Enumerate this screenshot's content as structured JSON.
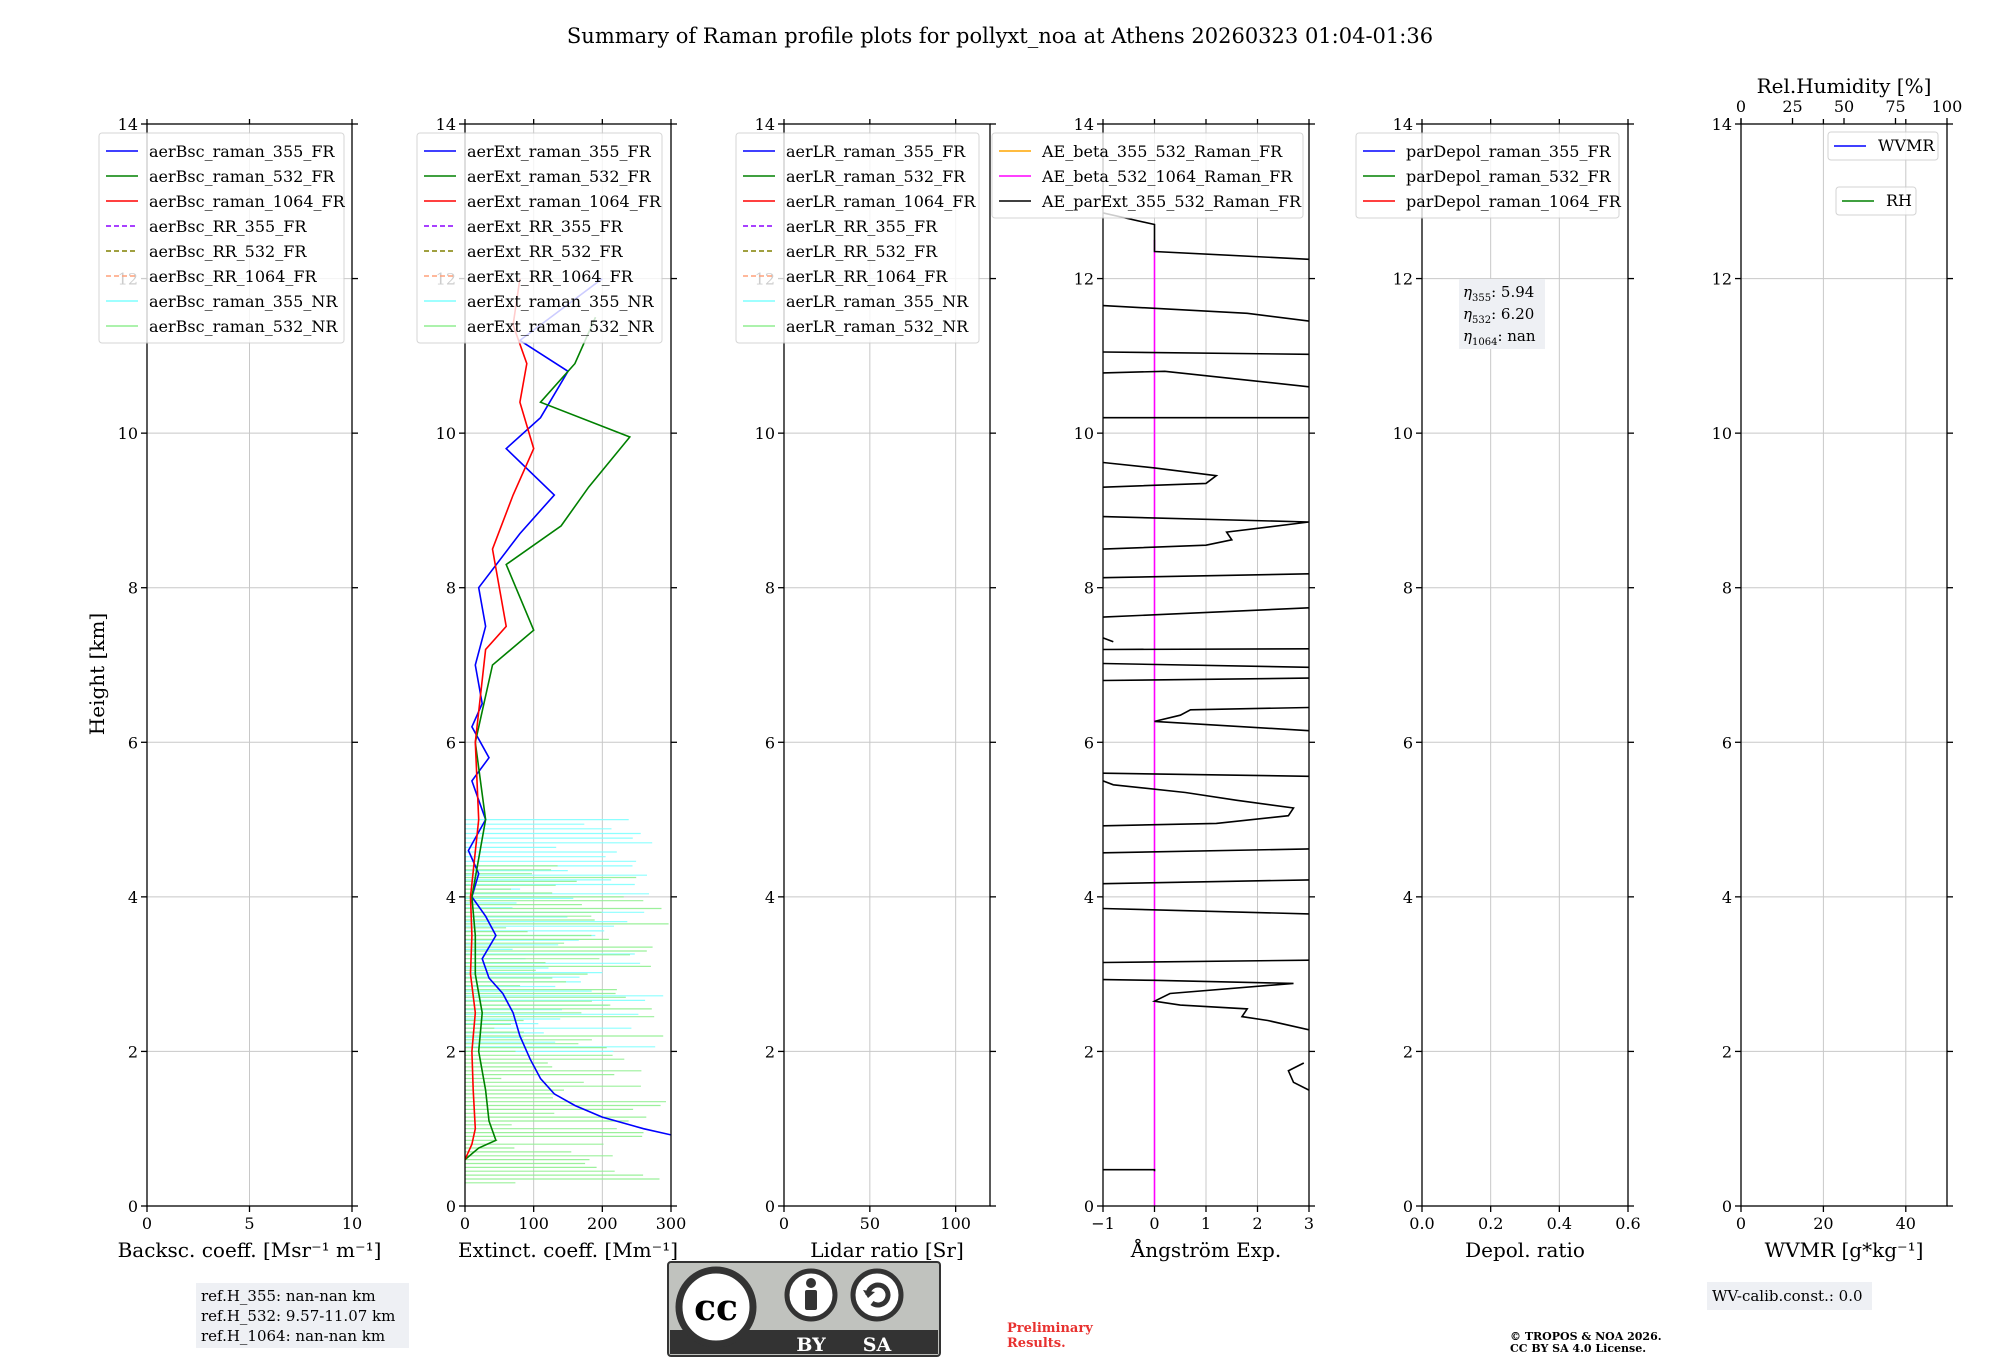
{
  "title": "Summary of Raman profile plots for pollyxt_noa at Athens 20260323 01:04-01:36",
  "ylabel": "Height [km]",
  "y_ticks": [
    0,
    2,
    4,
    6,
    8,
    10,
    12,
    14
  ],
  "colors": {
    "c355": "#0000ff",
    "c532": "#008000",
    "c1064": "#ff0000",
    "rr355": "#8b00ff",
    "rr532": "#808000",
    "rr1064": "#ffa07a",
    "nr355": "#7fffff",
    "nr532": "#90ee90",
    "orange": "#ffa500",
    "magenta": "#ff00ff",
    "black": "#000000",
    "grid": "#c8c8c8",
    "infobox": "#eef0f4"
  },
  "chart_data": [
    {
      "id": "bsc",
      "type": "line",
      "xlabel": "Backsc. coeff. [Msr⁻¹ m⁻¹]",
      "xlim": [
        0,
        10
      ],
      "ylim": [
        0,
        14
      ],
      "xticks": [
        0,
        5,
        10
      ],
      "grid": true,
      "legend": "top-left",
      "legend_entries": [
        {
          "label": "aerBsc_raman_355_FR",
          "color": "c355",
          "dashed": false
        },
        {
          "label": "aerBsc_raman_532_FR",
          "color": "c532",
          "dashed": false
        },
        {
          "label": "aerBsc_raman_1064_FR",
          "color": "c1064",
          "dashed": false
        },
        {
          "label": "aerBsc_RR_355_FR",
          "color": "rr355",
          "dashed": true
        },
        {
          "label": "aerBsc_RR_532_FR",
          "color": "rr532",
          "dashed": true
        },
        {
          "label": "aerBsc_RR_1064_FR",
          "color": "rr1064",
          "dashed": true
        },
        {
          "label": "aerBsc_raman_355_NR",
          "color": "nr355",
          "dashed": false
        },
        {
          "label": "aerBsc_raman_532_NR",
          "color": "nr532",
          "dashed": false
        }
      ],
      "series": []
    },
    {
      "id": "ext",
      "type": "line",
      "xlabel": "Extinct. coeff. [Mm⁻¹]",
      "xlim": [
        0,
        300
      ],
      "ylim": [
        0,
        14
      ],
      "xticks": [
        0,
        100,
        200,
        300
      ],
      "grid": true,
      "legend": "top-left",
      "legend_entries": [
        {
          "label": "aerExt_raman_355_FR",
          "color": "c355",
          "dashed": false
        },
        {
          "label": "aerExt_raman_532_FR",
          "color": "c532",
          "dashed": false
        },
        {
          "label": "aerExt_raman_1064_FR",
          "color": "c1064",
          "dashed": false
        },
        {
          "label": "aerExt_RR_355_FR",
          "color": "rr355",
          "dashed": true
        },
        {
          "label": "aerExt_RR_532_FR",
          "color": "rr532",
          "dashed": true
        },
        {
          "label": "aerExt_RR_1064_FR",
          "color": "rr1064",
          "dashed": true
        },
        {
          "label": "aerExt_raman_355_NR",
          "color": "nr355",
          "dashed": false
        },
        {
          "label": "aerExt_raman_532_NR",
          "color": "nr532",
          "dashed": false
        }
      ],
      "series": [
        {
          "name": "aerExt_raman_355_NR",
          "color": "nr355",
          "kind": "spiky",
          "y_range": [
            2.0,
            5.0
          ],
          "base": 60,
          "amp": 240,
          "seed": 11,
          "step": 0.06
        },
        {
          "name": "aerExt_raman_532_NR",
          "color": "nr532",
          "kind": "spiky",
          "y_range": [
            0.3,
            4.4
          ],
          "base": 40,
          "amp": 260,
          "seed": 23,
          "step": 0.05
        },
        {
          "name": "aerExt_raman_355_FR",
          "color": "c355",
          "kind": "points",
          "points": [
            [
              300,
              0.92
            ],
            [
              260,
              1.0
            ],
            [
              200,
              1.15
            ],
            [
              160,
              1.3
            ],
            [
              130,
              1.45
            ],
            [
              110,
              1.65
            ],
            [
              95,
              1.9
            ],
            [
              80,
              2.2
            ],
            [
              70,
              2.5
            ],
            [
              55,
              2.75
            ],
            [
              35,
              2.95
            ],
            [
              25,
              3.2
            ],
            [
              45,
              3.5
            ],
            [
              30,
              3.75
            ],
            [
              10,
              4.0
            ],
            [
              20,
              4.3
            ],
            [
              5,
              4.6
            ],
            [
              30,
              5.0
            ],
            [
              10,
              5.5
            ],
            [
              35,
              5.8
            ],
            [
              10,
              6.2
            ],
            [
              25,
              6.5
            ],
            [
              15,
              7.0
            ],
            [
              30,
              7.5
            ],
            [
              20,
              8.0
            ],
            [
              80,
              8.7
            ],
            [
              130,
              9.2
            ],
            [
              60,
              9.8
            ],
            [
              110,
              10.2
            ],
            [
              150,
              10.8
            ],
            [
              80,
              11.2
            ],
            [
              200,
              12.0
            ]
          ]
        },
        {
          "name": "aerExt_raman_532_FR",
          "color": "c532",
          "kind": "points",
          "points": [
            [
              0,
              0.6
            ],
            [
              20,
              0.75
            ],
            [
              45,
              0.85
            ],
            [
              35,
              1.1
            ],
            [
              30,
              1.5
            ],
            [
              20,
              2.0
            ],
            [
              25,
              2.5
            ],
            [
              15,
              3.0
            ],
            [
              15,
              3.5
            ],
            [
              10,
              4.0
            ],
            [
              30,
              5.0
            ],
            [
              15,
              6.0
            ],
            [
              40,
              7.0
            ],
            [
              100,
              7.45
            ],
            [
              60,
              8.3
            ],
            [
              140,
              8.8
            ],
            [
              180,
              9.3
            ],
            [
              240,
              9.95
            ],
            [
              110,
              10.4
            ],
            [
              160,
              10.9
            ],
            [
              190,
              11.5
            ]
          ]
        },
        {
          "name": "aerExt_raman_1064_FR",
          "color": "c1064",
          "kind": "points",
          "points": [
            [
              0,
              0.6
            ],
            [
              10,
              0.8
            ],
            [
              15,
              1.0
            ],
            [
              12,
              1.5
            ],
            [
              10,
              2.0
            ],
            [
              15,
              2.5
            ],
            [
              8,
              3.0
            ],
            [
              10,
              3.5
            ],
            [
              8,
              4.0
            ],
            [
              20,
              5.0
            ],
            [
              15,
              6.0
            ],
            [
              30,
              7.2
            ],
            [
              60,
              7.5
            ],
            [
              40,
              8.5
            ],
            [
              70,
              9.2
            ],
            [
              100,
              9.8
            ],
            [
              80,
              10.4
            ],
            [
              90,
              10.9
            ],
            [
              70,
              11.4
            ],
            [
              80,
              12.0
            ]
          ]
        }
      ]
    },
    {
      "id": "lr",
      "type": "line",
      "xlabel": "Lidar ratio [Sr]",
      "xlim": [
        0,
        120
      ],
      "ylim": [
        0,
        14
      ],
      "xticks": [
        0,
        50,
        100
      ],
      "grid": true,
      "legend": "top-left",
      "legend_entries": [
        {
          "label": "aerLR_raman_355_FR",
          "color": "c355",
          "dashed": false
        },
        {
          "label": "aerLR_raman_532_FR",
          "color": "c532",
          "dashed": false
        },
        {
          "label": "aerLR_raman_1064_FR",
          "color": "c1064",
          "dashed": false
        },
        {
          "label": "aerLR_RR_355_FR",
          "color": "rr355",
          "dashed": true
        },
        {
          "label": "aerLR_RR_532_FR",
          "color": "rr532",
          "dashed": true
        },
        {
          "label": "aerLR_RR_1064_FR",
          "color": "rr1064",
          "dashed": true
        },
        {
          "label": "aerLR_raman_355_NR",
          "color": "nr355",
          "dashed": false
        },
        {
          "label": "aerLR_raman_532_NR",
          "color": "nr532",
          "dashed": false
        }
      ],
      "series": []
    },
    {
      "id": "ae",
      "type": "line",
      "xlabel": "Ångström Exp.",
      "xlim": [
        -1,
        3
      ],
      "ylim": [
        0,
        14
      ],
      "xticks": [
        -1,
        0,
        1,
        2,
        3
      ],
      "grid": true,
      "legend": "top-left",
      "legend_entries": [
        {
          "label": "AE_beta_355_532_Raman_FR",
          "color": "orange",
          "dashed": false
        },
        {
          "label": "AE_beta_532_1064_Raman_FR",
          "color": "magenta",
          "dashed": false
        },
        {
          "label": "AE_parExt_355_532_Raman_FR",
          "color": "black",
          "dashed": false
        }
      ],
      "series": [
        {
          "name": "AE_beta_532_1064_Raman_FR",
          "color": "magenta",
          "kind": "points",
          "points": [
            [
              0,
              0.0
            ],
            [
              0,
              12.5
            ]
          ]
        },
        {
          "name": "AE_parExt_355_532_Raman_FR",
          "color": "black",
          "kind": "segments",
          "segments": [
            [
              [
                -1,
                0.47
              ],
              [
                0,
                0.47
              ],
              [
                0,
                0.45
              ]
            ],
            [
              [
                2.9,
                1.85
              ],
              [
                2.6,
                1.75
              ],
              [
                2.7,
                1.6
              ],
              [
                3,
                1.5
              ]
            ],
            [
              [
                3,
                2.28
              ],
              [
                2.2,
                2.4
              ],
              [
                1.7,
                2.45
              ],
              [
                1.8,
                2.55
              ],
              [
                0.5,
                2.6
              ],
              [
                0,
                2.65
              ],
              [
                0.3,
                2.75
              ],
              [
                2.7,
                2.88
              ],
              [
                0,
                2.92
              ],
              [
                -1,
                2.93
              ]
            ],
            [
              [
                -1,
                3.15
              ],
              [
                3,
                3.18
              ]
            ],
            [
              [
                -1,
                3.85
              ],
              [
                3,
                3.78
              ]
            ],
            [
              [
                -1,
                4.17
              ],
              [
                3,
                4.22
              ]
            ],
            [
              [
                -1,
                4.57
              ],
              [
                3,
                4.62
              ]
            ],
            [
              [
                -1,
                4.92
              ],
              [
                1.2,
                4.95
              ],
              [
                2.6,
                5.05
              ],
              [
                2.7,
                5.15
              ],
              [
                1.6,
                5.25
              ],
              [
                0.6,
                5.35
              ],
              [
                -0.8,
                5.45
              ],
              [
                -1,
                5.5
              ]
            ],
            [
              [
                -1,
                5.6
              ],
              [
                3,
                5.56
              ]
            ],
            [
              [
                3,
                6.15
              ],
              [
                0,
                6.27
              ],
              [
                0.5,
                6.35
              ],
              [
                0.7,
                6.42
              ],
              [
                3,
                6.45
              ]
            ],
            [
              [
                -1,
                6.8
              ],
              [
                3,
                6.83
              ]
            ],
            [
              [
                -1,
                7.02
              ],
              [
                3,
                6.97
              ]
            ],
            [
              [
                -1,
                7.2
              ],
              [
                3,
                7.21
              ]
            ],
            [
              [
                -0.8,
                7.3
              ],
              [
                -1,
                7.35
              ]
            ],
            [
              [
                -1,
                7.62
              ],
              [
                3,
                7.74
              ]
            ],
            [
              [
                -1,
                8.13
              ],
              [
                3,
                8.18
              ]
            ],
            [
              [
                -1,
                8.5
              ],
              [
                1.0,
                8.55
              ],
              [
                1.5,
                8.62
              ],
              [
                1.4,
                8.72
              ],
              [
                3,
                8.85
              ],
              [
                -1,
                8.92
              ]
            ],
            [
              [
                -1,
                9.3
              ],
              [
                1.0,
                9.35
              ],
              [
                1.2,
                9.45
              ],
              [
                0,
                9.55
              ],
              [
                -1,
                9.62
              ]
            ],
            [
              [
                -1,
                10.2
              ],
              [
                3,
                10.2
              ]
            ],
            [
              [
                -1,
                10.78
              ],
              [
                0.2,
                10.8
              ],
              [
                3,
                10.6
              ]
            ],
            [
              [
                -1,
                11.05
              ],
              [
                3,
                11.02
              ]
            ],
            [
              [
                -1,
                11.65
              ],
              [
                1.8,
                11.55
              ],
              [
                3,
                11.45
              ]
            ],
            [
              [
                -1,
                12.85
              ],
              [
                0,
                12.7
              ],
              [
                0,
                12.35
              ],
              [
                3,
                12.25
              ]
            ]
          ]
        }
      ]
    },
    {
      "id": "depol",
      "type": "line",
      "xlabel": "Depol. ratio",
      "xlim": [
        0,
        0.6
      ],
      "ylim": [
        0,
        14
      ],
      "xticks": [
        0.0,
        0.2,
        0.4,
        0.6
      ],
      "grid": true,
      "legend": "top-left",
      "legend_entries": [
        {
          "label": "parDepol_raman_355_FR",
          "color": "c355",
          "dashed": false
        },
        {
          "label": "parDepol_raman_532_FR",
          "color": "c532",
          "dashed": false
        },
        {
          "label": "parDepol_raman_1064_FR",
          "color": "c1064",
          "dashed": false
        }
      ],
      "eta": [
        {
          "sub": "355",
          "value": "5.94"
        },
        {
          "sub": "532",
          "value": "6.20"
        },
        {
          "sub": "1064",
          "value": "nan"
        }
      ],
      "series": []
    },
    {
      "id": "wv",
      "type": "line",
      "xlabel": "WVMR [g*kg⁻¹]",
      "xlim": [
        0,
        50
      ],
      "ylim": [
        0,
        14
      ],
      "xticks": [
        0,
        20,
        40
      ],
      "grid": true,
      "legend": "top-right",
      "top_axis": {
        "label": "Rel.Humidity [%]",
        "xlim": [
          0,
          100
        ],
        "ticks": [
          0,
          25,
          50,
          75,
          100
        ]
      },
      "legend_entries": [
        {
          "label": "WVMR",
          "color": "c355",
          "dashed": false
        },
        {
          "label": "RH",
          "color": "c532",
          "dashed": false
        }
      ],
      "series": []
    }
  ],
  "ref_heights": [
    "ref.H_355: nan-nan km",
    "ref.H_532: 9.57-11.07 km",
    "ref.H_1064: nan-nan km"
  ],
  "wv_calib": "WV-calib.const.: 0.0",
  "preliminary": [
    "Preliminary",
    "Results."
  ],
  "copyright": [
    "© TROPOS & NOA 2026.",
    "CC BY SA 4.0 License."
  ],
  "license_badge": {
    "cc": "cc",
    "by": "BY",
    "sa": "SA"
  }
}
